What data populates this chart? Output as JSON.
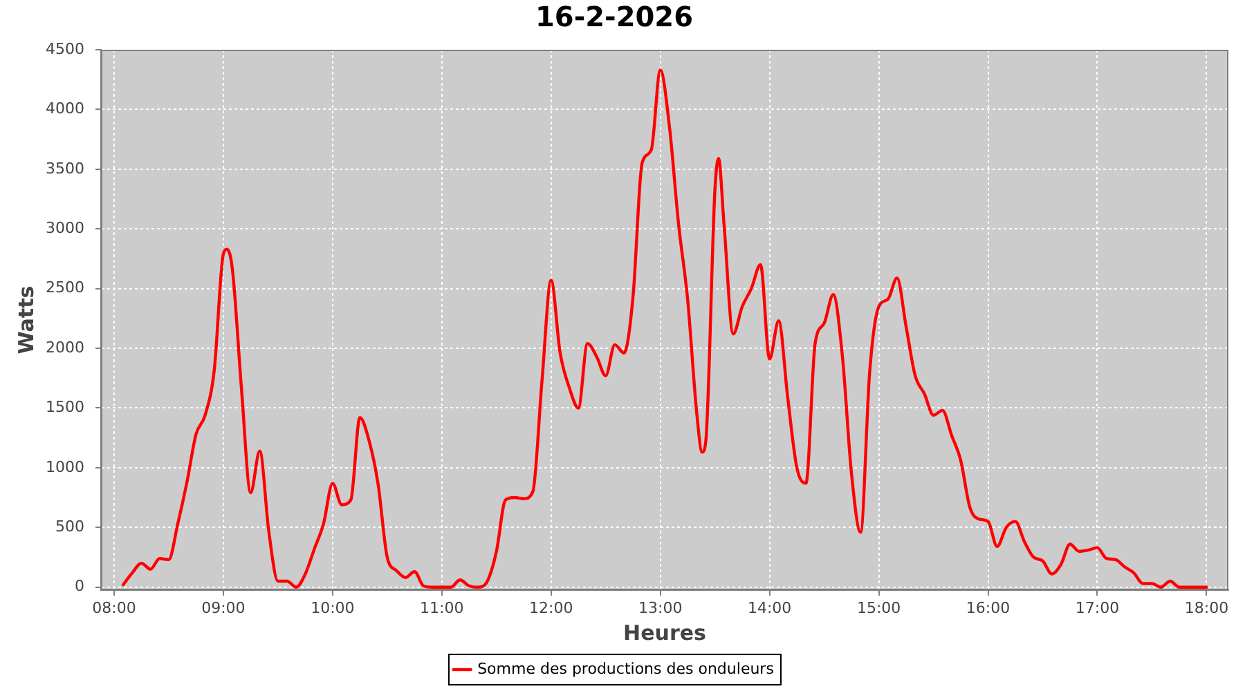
{
  "chart_data": {
    "type": "line",
    "title": "16-2-2026",
    "xlabel": "Heures",
    "ylabel": "Watts",
    "x": [
      8.083,
      8.167,
      8.25,
      8.333,
      8.417,
      8.5,
      8.583,
      8.667,
      8.75,
      8.833,
      8.917,
      9,
      9.033,
      9.083,
      9.167,
      9.25,
      9.333,
      9.417,
      9.5,
      9.583,
      9.667,
      9.75,
      9.833,
      9.917,
      10,
      10.083,
      10.167,
      10.25,
      10.333,
      10.417,
      10.5,
      10.583,
      10.667,
      10.75,
      10.833,
      10.917,
      11,
      11.083,
      11.167,
      11.25,
      11.333,
      11.417,
      11.5,
      11.583,
      11.667,
      11.75,
      11.833,
      11.917,
      12,
      12.083,
      12.167,
      12.25,
      12.333,
      12.417,
      12.5,
      12.583,
      12.667,
      12.75,
      12.833,
      12.917,
      13,
      13.083,
      13.167,
      13.25,
      13.333,
      13.383,
      13.417,
      13.5,
      13.533,
      13.583,
      13.667,
      13.75,
      13.833,
      13.917,
      14,
      14.083,
      14.167,
      14.25,
      14.333,
      14.417,
      14.5,
      14.583,
      14.667,
      14.75,
      14.833,
      14.917,
      15,
      15.083,
      15.167,
      15.25,
      15.333,
      15.417,
      15.5,
      15.583,
      15.667,
      15.75,
      15.833,
      15.917,
      16,
      16.083,
      16.167,
      16.25,
      16.333,
      16.417,
      16.5,
      16.583,
      16.667,
      16.75,
      16.833,
      16.917,
      17,
      17.083,
      17.167,
      17.25,
      17.333,
      17.417,
      17.5,
      17.583,
      17.667,
      17.75,
      17.833,
      17.917,
      18
    ],
    "series": [
      {
        "name": "Somme des productions des onduleurs",
        "color": "#ff0000",
        "values": [
          20,
          120,
          200,
          150,
          240,
          230,
          530,
          880,
          1280,
          1440,
          1820,
          2790,
          2830,
          2660,
          1650,
          790,
          1140,
          460,
          50,
          50,
          0,
          110,
          320,
          530,
          870,
          690,
          730,
          1420,
          1230,
          860,
          250,
          140,
          80,
          130,
          10,
          0,
          0,
          0,
          60,
          10,
          0,
          50,
          300,
          730,
          750,
          740,
          800,
          1730,
          2570,
          1960,
          1670,
          1500,
          2040,
          1930,
          1770,
          2030,
          1960,
          2430,
          3550,
          3660,
          4330,
          3860,
          3040,
          2410,
          1460,
          1130,
          1230,
          3330,
          3590,
          3040,
          2120,
          2350,
          2500,
          2700,
          1910,
          2230,
          1580,
          1000,
          870,
          2040,
          2210,
          2450,
          1930,
          950,
          460,
          1810,
          2350,
          2410,
          2590,
          2180,
          1770,
          1620,
          1440,
          1480,
          1270,
          1060,
          670,
          570,
          550,
          340,
          500,
          550,
          380,
          250,
          220,
          110,
          190,
          360,
          300,
          310,
          330,
          240,
          230,
          170,
          120,
          30,
          30,
          0,
          50,
          0,
          0,
          0,
          0
        ]
      }
    ],
    "xlim": [
      7.88,
      18.2
    ],
    "xticks": [
      {
        "value": 8,
        "label": "08:00"
      },
      {
        "value": 9,
        "label": "09:00"
      },
      {
        "value": 10,
        "label": "10:00"
      },
      {
        "value": 11,
        "label": "11:00"
      },
      {
        "value": 12,
        "label": "12:00"
      },
      {
        "value": 13,
        "label": "13:00"
      },
      {
        "value": 14,
        "label": "14:00"
      },
      {
        "value": 15,
        "label": "15:00"
      },
      {
        "value": 16,
        "label": "16:00"
      },
      {
        "value": 17,
        "label": "17:00"
      },
      {
        "value": 18,
        "label": "18:00"
      }
    ],
    "ylim": [
      -25,
      4500
    ],
    "yticks": [
      0,
      500,
      1000,
      1500,
      2000,
      2500,
      3000,
      3500,
      4000,
      4500
    ],
    "grid": true,
    "legend": "bottom",
    "marker": "none",
    "line_style": "solid"
  }
}
